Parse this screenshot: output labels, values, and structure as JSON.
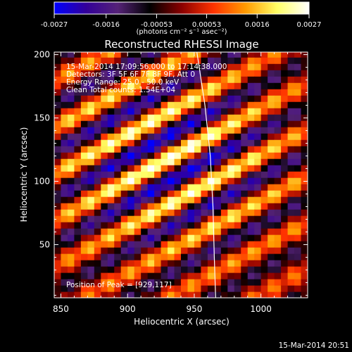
{
  "chart_data": {
    "type": "heatmap",
    "title": "Reconstructed RHESSI Image",
    "xlabel": "Heliocentric X (arcsec)",
    "ylabel": "Heliocentric Y (arcsec)",
    "xlim": [
      845,
      1035
    ],
    "ylim": [
      8,
      202
    ],
    "x_ticks": [
      850,
      900,
      950,
      1000
    ],
    "x_tick_labels": [
      "850",
      "900",
      "950",
      "1000"
    ],
    "y_ticks": [
      50,
      100,
      150,
      200
    ],
    "y_tick_labels": [
      "50",
      "100",
      "150",
      "200"
    ],
    "colorbar": {
      "range": [
        -0.0027,
        0.0027
      ],
      "tick_labels": [
        "-0.0027",
        "-0.0016",
        "-0.00053",
        "0.00053",
        "0.0016",
        "0.0027"
      ],
      "units_label": "(photons cm⁻² s⁻¹ asec⁻²)",
      "colormap": [
        "#0000ff",
        "#330099",
        "#552277",
        "#000000",
        "#8a0000",
        "#ff3300",
        "#ff9a00",
        "#ffff66",
        "#ffffff"
      ]
    },
    "peak": [
      929,
      117
    ],
    "limb_line": [
      [
        952,
        202
      ],
      [
        958,
        160
      ],
      [
        962,
        120
      ],
      [
        964,
        80
      ],
      [
        965,
        40
      ],
      [
        966,
        8
      ]
    ],
    "annotations": [
      "15-Mar-2014 17:09:56.000 to 17:14:38.000",
      "Detectors: 3F 5F 6F 7F 8F 9F, Att 0",
      "Energy Range: 25.0 - 50.0 keV",
      "Clean     Total counts: 1.54E+04"
    ],
    "peak_label": "Position of Peak = [929,117]"
  },
  "footer": {
    "date": "15-Mar-2014 20:51"
  }
}
